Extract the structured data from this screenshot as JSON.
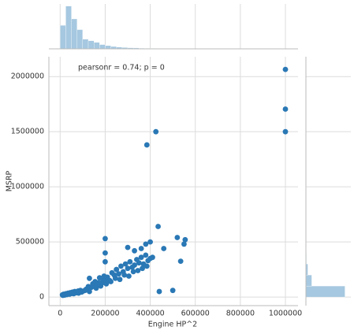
{
  "chart_data": [
    {
      "type": "scatter",
      "annotation": "pearsonr = 0.74; p = 0",
      "x_label": "Engine HP^2",
      "y_label": "MSRP",
      "color": "#2a78b5",
      "grid": true,
      "xlim": [
        -50000,
        1056000
      ],
      "ylim": [
        -78000,
        2180000
      ],
      "xticks": [
        0,
        200000,
        400000,
        600000,
        800000,
        1000000
      ],
      "yticks": [
        0,
        500000,
        1000000,
        1500000,
        2000000
      ],
      "x": [
        10000,
        15000,
        20000,
        25000,
        30000,
        35000,
        40000,
        45000,
        50000,
        55000,
        60000,
        65000,
        70000,
        75000,
        80000,
        85000,
        90000,
        95000,
        100000,
        12000,
        22000,
        32000,
        42000,
        52000,
        62000,
        72000,
        82000,
        92000,
        110000,
        120000,
        130000,
        140000,
        150000,
        160000,
        170000,
        180000,
        190000,
        200000,
        115000,
        125000,
        135000,
        145000,
        155000,
        165000,
        175000,
        185000,
        195000,
        210000,
        220000,
        230000,
        240000,
        250000,
        260000,
        270000,
        280000,
        290000,
        300000,
        310000,
        320000,
        330000,
        340000,
        350000,
        360000,
        370000,
        380000,
        390000,
        400000,
        205000,
        225000,
        245000,
        265000,
        285000,
        305000,
        325000,
        345000,
        365000,
        385000,
        130000,
        200000,
        200000,
        330000,
        360000,
        380000,
        400000,
        410000,
        435000,
        460000,
        520000,
        555000,
        550000,
        535000,
        500000,
        440000,
        385000,
        425000,
        1000000,
        1000000,
        1000000,
        200000,
        250000,
        300000
      ],
      "y": [
        20000,
        25000,
        18000,
        30000,
        22000,
        35000,
        28000,
        40000,
        32000,
        45000,
        30000,
        50000,
        38000,
        42000,
        55000,
        48000,
        60000,
        45000,
        52000,
        15000,
        24000,
        30000,
        26000,
        38000,
        34000,
        44000,
        36000,
        50000,
        60000,
        75000,
        50000,
        90000,
        110000,
        80000,
        130000,
        100000,
        150000,
        160000,
        70000,
        95000,
        85000,
        120000,
        140000,
        105000,
        175000,
        125000,
        190000,
        180000,
        150000,
        220000,
        200000,
        250000,
        210000,
        280000,
        230000,
        300000,
        260000,
        320000,
        270000,
        290000,
        340000,
        310000,
        360000,
        300000,
        380000,
        330000,
        350000,
        120000,
        140000,
        170000,
        160000,
        200000,
        190000,
        230000,
        240000,
        260000,
        280000,
        170000,
        530000,
        400000,
        420000,
        440000,
        480000,
        500000,
        360000,
        640000,
        440000,
        540000,
        520000,
        480000,
        325000,
        60000,
        50000,
        1380000,
        1500000,
        2065000,
        1705000,
        1500000,
        320000,
        250000,
        450000
      ]
    },
    {
      "type": "histogram",
      "orientation": "vertical",
      "color": "#a6c8e0",
      "ylim": [
        0,
        2100
      ],
      "bins": [
        0,
        25000,
        50000,
        75000,
        100000,
        125000,
        150000,
        175000,
        200000,
        225000,
        250000,
        275000,
        300000,
        325000,
        350000,
        375000,
        400000,
        425000,
        450000,
        475000,
        500000,
        525000,
        550000,
        575000,
        600000,
        625000,
        650000,
        675000,
        700000,
        725000,
        750000,
        775000,
        800000,
        825000,
        850000,
        875000,
        900000,
        925000,
        950000,
        975000,
        1000000
      ],
      "counts": [
        1100,
        2000,
        1400,
        900,
        450,
        380,
        300,
        200,
        150,
        110,
        80,
        60,
        50,
        40,
        30,
        20,
        20,
        15,
        10,
        8,
        6,
        5,
        4,
        3,
        2,
        1,
        1,
        0,
        0,
        0,
        0,
        0,
        0,
        0,
        0,
        0,
        0,
        0,
        0,
        3
      ]
    },
    {
      "type": "histogram",
      "orientation": "horizontal",
      "color": "#a6c8e0",
      "xlim": [
        0,
        10500
      ],
      "bins": [
        0,
        100000,
        200000,
        300000,
        400000,
        500000,
        600000,
        700000,
        800000,
        900000,
        1000000,
        1100000,
        1200000,
        1300000,
        1400000,
        1500000,
        1600000,
        1700000,
        1800000,
        1900000,
        2000000,
        2100000
      ],
      "counts": [
        10000,
        1500,
        500,
        150,
        60,
        20,
        3,
        0,
        0,
        0,
        0,
        0,
        0,
        1,
        1,
        2,
        0,
        1,
        0,
        0,
        1
      ]
    }
  ]
}
